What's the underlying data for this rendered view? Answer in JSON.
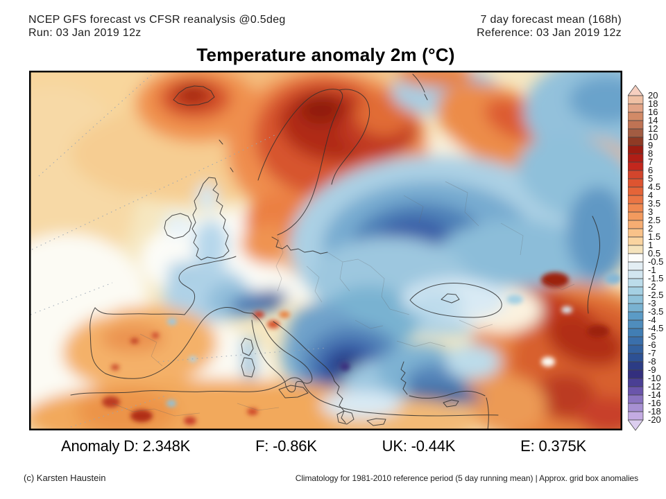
{
  "header": {
    "left_line1": "NCEP GFS forecast vs CFSR reanalysis @0.5deg",
    "left_line2": "Run: 03 Jan 2019 12z",
    "right_line1": "7 day forecast mean (168h)",
    "right_line2": "Reference: 03 Jan 2019 12z"
  },
  "title": "Temperature anomaly 2m (°C)",
  "map": {
    "regions": [
      {
        "area": "North Atlantic (west of Ireland/Biscay)",
        "anomaly_c": "0 to +2"
      },
      {
        "area": "Iceland",
        "anomaly_c": "+4 to +8"
      },
      {
        "area": "Norway / Sweden / Finland / Kola",
        "anomaly_c": "+4 to +10"
      },
      {
        "area": "Denmark / Baltic coast / Poland",
        "anomaly_c": "+2 to +5"
      },
      {
        "area": "British Isles",
        "anomaly_c": "-1 to 0"
      },
      {
        "area": "France / Alps",
        "anomaly_c": "-1 to -5"
      },
      {
        "area": "Iberia / Northwest Africa",
        "anomaly_c": "+1 to +6"
      },
      {
        "area": "Western Russia / Ukraine",
        "anomaly_c": "-2 to -6"
      },
      {
        "area": "Balkans / Greece",
        "anomaly_c": "-4 to -10"
      },
      {
        "area": "Turkey",
        "anomaly_c": "-2 to -6"
      },
      {
        "area": "Caucasus / Middle East",
        "anomaly_c": "+4 to +9"
      },
      {
        "area": "Barents Sea / far northeast",
        "anomaly_c": "-2 to -4"
      }
    ]
  },
  "colorbar": {
    "ticks": [
      "20",
      "18",
      "16",
      "14",
      "12",
      "10",
      "9",
      "8",
      "7",
      "6",
      "5",
      "4.5",
      "4",
      "3.5",
      "3",
      "2.5",
      "2",
      "1.5",
      "1",
      "0.5",
      "-0.5",
      "-1",
      "-1.5",
      "-2",
      "-2.5",
      "-3",
      "-3.5",
      "-4",
      "-4.5",
      "-5",
      "-6",
      "-7",
      "-8",
      "-9",
      "-10",
      "-12",
      "-14",
      "-16",
      "-18",
      "-20"
    ],
    "colors": [
      "#f6cfc0",
      "#efc0a4",
      "#e2a487",
      "#d28a67",
      "#bf7354",
      "#a25c42",
      "#8f3a24",
      "#9c1c11",
      "#b01e16",
      "#c3271d",
      "#d2452c",
      "#dd5430",
      "#e46438",
      "#ea7544",
      "#ef8850",
      "#f39a5e",
      "#f6ad72",
      "#f9c289",
      "#fad4a0",
      "#f5e3bc",
      "#fdfdfb",
      "#e3eef4",
      "#d2e6f0",
      "#bcdcea",
      "#a5d0e3",
      "#8fc2da",
      "#79b2d1",
      "#5b9bc6",
      "#4f8dbd",
      "#417eb4",
      "#3a6fab",
      "#33619f",
      "#2d5194",
      "#2c3c85",
      "#332f7e",
      "#4a3f94",
      "#6a55ab",
      "#8a73c0",
      "#a790d2",
      "#c3abe2",
      "#dcceef"
    ]
  },
  "stats": {
    "items": [
      "Anomaly D: 2.348K",
      "F: -0.86K",
      "UK: -0.44K",
      "E: 0.375K"
    ]
  },
  "footer": {
    "credit": "(c) Karsten Haustein",
    "note": "Climatology for 1981-2010 reference period (5 day running mean) | Approx. grid box anomalies"
  }
}
